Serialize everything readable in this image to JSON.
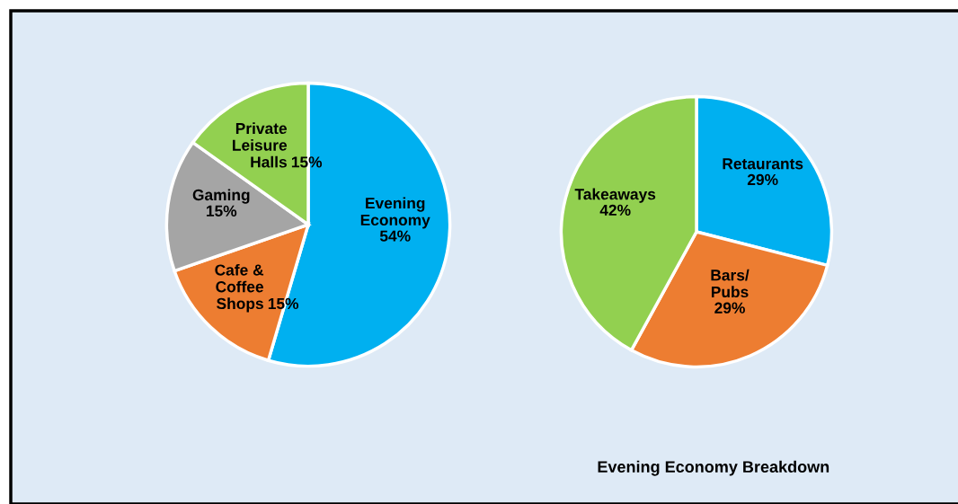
{
  "chart_data": [
    {
      "type": "pie",
      "categories": [
        "Evening\nEconomy",
        "Cafe &\nCoffee\nShops",
        "Gaming",
        "Private\nLeisure\nHalls"
      ],
      "values": [
        54,
        15,
        15,
        15
      ],
      "value_labels": [
        "54%",
        "15%",
        "15%",
        "15%"
      ],
      "colors": [
        "#00b0f0",
        "#ed7d31",
        "#a5a5a5",
        "#92d050"
      ]
    },
    {
      "type": "pie",
      "title": "Evening Economy Breakdown",
      "categories": [
        "Retaurants",
        "Bars/\nPubs",
        "Takeaways"
      ],
      "values": [
        29,
        29,
        42
      ],
      "value_labels": [
        "29%",
        "29%",
        "42%"
      ],
      "colors": [
        "#00b0f0",
        "#ed7d31",
        "#92d050"
      ]
    }
  ]
}
